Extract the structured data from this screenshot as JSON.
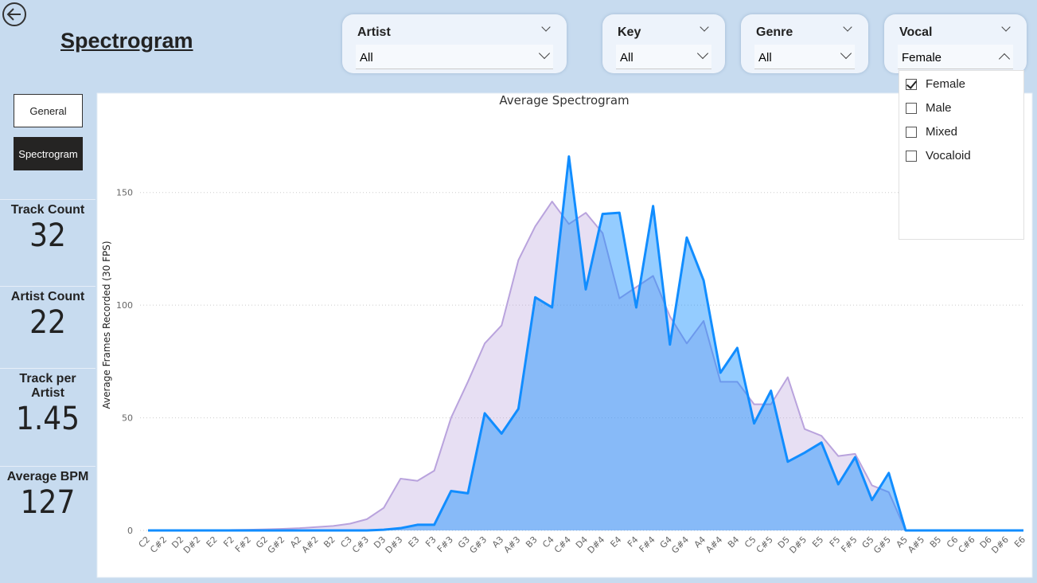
{
  "header": {
    "title": "Spectrogram"
  },
  "nav": [
    "General",
    "Spectrogram"
  ],
  "cards": [
    {
      "label": "Track Count",
      "value": 32
    },
    {
      "label": "Artist Count",
      "value": 22
    },
    {
      "label": "Track per Artist",
      "value": 1.45
    },
    {
      "label": "Average BPM",
      "value": 127
    }
  ],
  "slicers": [
    {
      "label": "Artist",
      "value": "All"
    },
    {
      "label": "Key",
      "value": "All"
    },
    {
      "label": "Genre",
      "value": "All"
    },
    {
      "label": "Vocal",
      "value": "Female",
      "options": [
        {
          "label": "Female",
          "checked": true
        },
        {
          "label": "Male",
          "checked": false
        },
        {
          "label": "Mixed",
          "checked": false
        },
        {
          "label": "Vocaloid",
          "checked": false
        }
      ]
    }
  ],
  "chart_data": {
    "type": "area",
    "title": "Average Spectrogram",
    "y_label": "Average Frames Recorded (30 FPS)",
    "categories": [
      "C2",
      "C#2",
      "D2",
      "D#2",
      "E2",
      "F2",
      "F#2",
      "G2",
      "G#2",
      "A2",
      "A#2",
      "B2",
      "C3",
      "C#3",
      "D3",
      "D#3",
      "E3",
      "F3",
      "F#3",
      "G3",
      "G#3",
      "A3",
      "A#3",
      "B3",
      "C4",
      "C#4",
      "D4",
      "D#4",
      "E4",
      "F4",
      "F#4",
      "G4",
      "G#4",
      "A4",
      "A#4",
      "B4",
      "C5",
      "C#5",
      "D5",
      "D#5",
      "E5",
      "F5",
      "F#5",
      "G5",
      "G#5",
      "A5",
      "A#5",
      "B5",
      "C6",
      "C#6",
      "D6",
      "D#6",
      "E6"
    ],
    "series": [
      {
        "color": "#b9a3dd",
        "values": [
          0,
          0,
          0,
          0,
          0,
          0.2,
          0.3,
          0.5,
          0.7,
          1,
          1.5,
          2,
          3,
          5,
          10,
          23,
          22,
          26.5,
          50,
          66,
          83,
          91,
          120,
          135,
          146,
          136,
          141,
          132,
          103,
          108,
          113,
          95,
          83,
          93,
          66,
          66,
          56,
          56,
          68,
          45,
          42,
          33,
          34,
          20,
          17,
          0,
          0,
          0,
          0,
          0,
          0,
          0,
          0
        ]
      },
      {
        "color": "#118dff",
        "values": [
          0,
          0,
          0,
          0,
          0,
          0,
          0,
          0,
          0,
          0,
          0,
          0,
          0,
          0,
          0.3,
          1,
          2.5,
          2.5,
          17.5,
          16.5,
          52,
          43,
          54,
          103.5,
          99,
          166,
          107,
          140.5,
          141,
          99,
          144,
          82.5,
          130,
          111,
          70,
          81,
          47.5,
          62,
          30.5,
          34.5,
          39,
          20.5,
          32.5,
          13.5,
          25.5,
          0,
          0,
          0,
          0,
          0,
          0,
          0,
          0
        ]
      }
    ],
    "ylim": [
      0,
      175
    ],
    "yticks": [
      0,
      50,
      100,
      150
    ],
    "grid": true
  }
}
